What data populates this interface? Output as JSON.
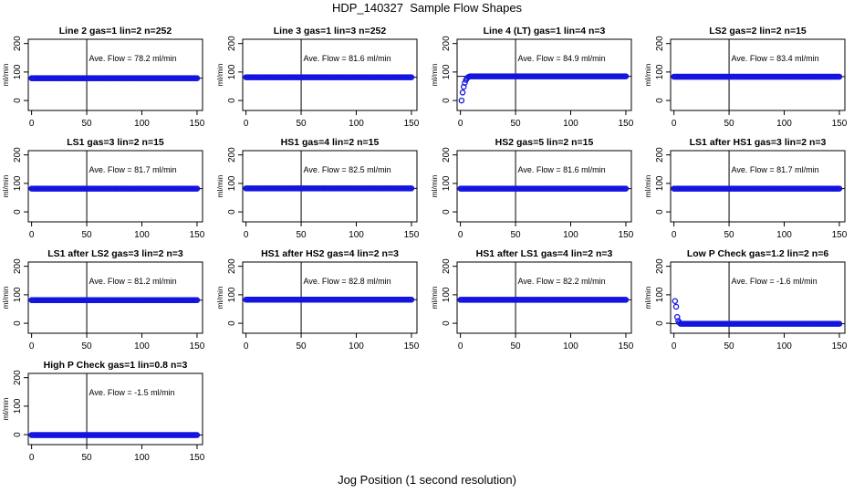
{
  "page": {
    "title": "HDP_140327  Sample Flow Shapes",
    "xlabel": "Jog Position (1 second resolution)"
  },
  "colors": {
    "points": "#1414e0",
    "axis": "#000000"
  },
  "chart_data": [
    {
      "type": "scatter",
      "title": "Line 2 gas=1 lin=2 n=252",
      "annotation": "Ave. Flow = 78.2 ml/min",
      "ylabel": "ml/min",
      "xlim": [
        -3,
        155
      ],
      "ylim": [
        -35,
        215
      ],
      "xticks": [
        0,
        50,
        100,
        150
      ],
      "yticks": [
        0,
        100,
        200
      ],
      "vline": 50,
      "hline": 78.2,
      "flow": 78.2,
      "shape": "flat"
    },
    {
      "type": "scatter",
      "title": "Line 3 gas=1 lin=3 n=252",
      "annotation": "Ave. Flow = 81.6 ml/min",
      "ylabel": "ml/min",
      "xlim": [
        -3,
        155
      ],
      "ylim": [
        -35,
        215
      ],
      "xticks": [
        0,
        50,
        100,
        150
      ],
      "yticks": [
        0,
        100,
        200
      ],
      "vline": 50,
      "hline": 81.6,
      "flow": 81.6,
      "shape": "flat"
    },
    {
      "type": "scatter",
      "title": "Line 4 (LT) gas=1 lin=4 n=3",
      "annotation": "Ave. Flow = 84.9 ml/min",
      "ylabel": "ml/min",
      "xlim": [
        -3,
        155
      ],
      "ylim": [
        -35,
        215
      ],
      "xticks": [
        0,
        50,
        100,
        150
      ],
      "yticks": [
        0,
        100,
        200
      ],
      "vline": 50,
      "hline": 84.9,
      "flow": 84.9,
      "shape": "rampup",
      "startup": [
        [
          1,
          0
        ],
        [
          2,
          28
        ],
        [
          3,
          48
        ],
        [
          4,
          62
        ],
        [
          5,
          72
        ],
        [
          6,
          78
        ],
        [
          7,
          82
        ],
        [
          8,
          84
        ]
      ]
    },
    {
      "type": "scatter",
      "title": "LS2 gas=2 lin=2 n=15",
      "annotation": "Ave. Flow = 83.4 ml/min",
      "ylabel": "ml/min",
      "xlim": [
        -3,
        155
      ],
      "ylim": [
        -35,
        215
      ],
      "xticks": [
        0,
        50,
        100,
        150
      ],
      "yticks": [
        0,
        100,
        200
      ],
      "vline": 50,
      "hline": 83.4,
      "flow": 83.4,
      "shape": "flat"
    },
    {
      "type": "scatter",
      "title": "LS1 gas=3 lin=2 n=15",
      "annotation": "Ave. Flow = 81.7 ml/min",
      "ylabel": "ml/min",
      "xlim": [
        -3,
        155
      ],
      "ylim": [
        -35,
        215
      ],
      "xticks": [
        0,
        50,
        100,
        150
      ],
      "yticks": [
        0,
        100,
        200
      ],
      "vline": 50,
      "hline": 81.7,
      "flow": 81.7,
      "shape": "flat"
    },
    {
      "type": "scatter",
      "title": "HS1 gas=4 lin=2 n=15",
      "annotation": "Ave. Flow = 82.5 ml/min",
      "ylabel": "ml/min",
      "xlim": [
        -3,
        155
      ],
      "ylim": [
        -35,
        215
      ],
      "xticks": [
        0,
        50,
        100,
        150
      ],
      "yticks": [
        0,
        100,
        200
      ],
      "vline": 50,
      "hline": 82.5,
      "flow": 82.5,
      "shape": "flat"
    },
    {
      "type": "scatter",
      "title": "HS2 gas=5 lin=2 n=15",
      "annotation": "Ave. Flow = 81.6 ml/min",
      "ylabel": "ml/min",
      "xlim": [
        -3,
        155
      ],
      "ylim": [
        -35,
        215
      ],
      "xticks": [
        0,
        50,
        100,
        150
      ],
      "yticks": [
        0,
        100,
        200
      ],
      "vline": 50,
      "hline": 81.6,
      "flow": 81.6,
      "shape": "flat"
    },
    {
      "type": "scatter",
      "title": "LS1 after HS1 gas=3 lin=2 n=3",
      "annotation": "Ave. Flow = 81.7 ml/min",
      "ylabel": "ml/min",
      "xlim": [
        -3,
        155
      ],
      "ylim": [
        -35,
        215
      ],
      "xticks": [
        0,
        50,
        100,
        150
      ],
      "yticks": [
        0,
        100,
        200
      ],
      "vline": 50,
      "hline": 81.7,
      "flow": 81.7,
      "shape": "flat"
    },
    {
      "type": "scatter",
      "title": "LS1 after LS2 gas=3 lin=2 n=3",
      "annotation": "Ave. Flow = 81.2 ml/min",
      "ylabel": "ml/min",
      "xlim": [
        -3,
        155
      ],
      "ylim": [
        -35,
        215
      ],
      "xticks": [
        0,
        50,
        100,
        150
      ],
      "yticks": [
        0,
        100,
        200
      ],
      "vline": 50,
      "hline": 81.2,
      "flow": 81.2,
      "shape": "flat"
    },
    {
      "type": "scatter",
      "title": "HS1 after HS2 gas=4 lin=2 n=3",
      "annotation": "Ave. Flow = 82.8 ml/min",
      "ylabel": "ml/min",
      "xlim": [
        -3,
        155
      ],
      "ylim": [
        -35,
        215
      ],
      "xticks": [
        0,
        50,
        100,
        150
      ],
      "yticks": [
        0,
        100,
        200
      ],
      "vline": 50,
      "hline": 82.8,
      "flow": 82.8,
      "shape": "flat"
    },
    {
      "type": "scatter",
      "title": "HS1 after LS1 gas=4 lin=2 n=3",
      "annotation": "Ave. Flow = 82.2 ml/min",
      "ylabel": "ml/min",
      "xlim": [
        -3,
        155
      ],
      "ylim": [
        -35,
        215
      ],
      "xticks": [
        0,
        50,
        100,
        150
      ],
      "yticks": [
        0,
        100,
        200
      ],
      "vline": 50,
      "hline": 82.2,
      "flow": 82.2,
      "shape": "flat"
    },
    {
      "type": "scatter",
      "title": "Low P Check gas=1.2 lin=2 n=6",
      "annotation": "Ave. Flow = -1.6 ml/min",
      "ylabel": "ml/min",
      "xlim": [
        -3,
        155
      ],
      "ylim": [
        -35,
        215
      ],
      "xticks": [
        0,
        50,
        100,
        150
      ],
      "yticks": [
        0,
        100,
        200
      ],
      "vline": 50,
      "hline": -1.6,
      "flow": -1.6,
      "shape": "decay",
      "startup": [
        [
          1,
          78
        ],
        [
          2,
          58
        ],
        [
          3,
          22
        ],
        [
          4,
          8
        ],
        [
          5,
          2
        ]
      ]
    },
    {
      "type": "scatter",
      "title": "High P Check gas=1 lin=0.8 n=3",
      "annotation": "Ave. Flow = -1.5 ml/min",
      "ylabel": "ml/min",
      "xlim": [
        -3,
        155
      ],
      "ylim": [
        -35,
        215
      ],
      "xticks": [
        0,
        50,
        100,
        150
      ],
      "yticks": [
        0,
        100,
        200
      ],
      "vline": 50,
      "hline": -1.5,
      "flow": -1.5,
      "shape": "flat"
    }
  ]
}
